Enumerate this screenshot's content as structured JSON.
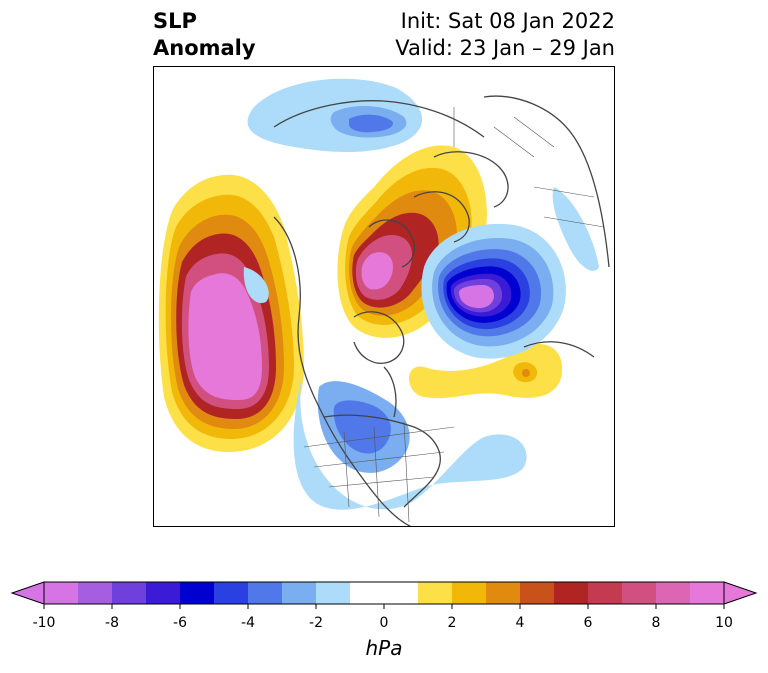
{
  "header": {
    "title_line1": "SLP",
    "title_line2": "Anomaly",
    "init_text": "Init: Sat 08 Jan 2022",
    "valid_text": "Valid: 23 Jan – 29 Jan"
  },
  "colorbar": {
    "unit_label": "hPa",
    "tick_labels": [
      "-10",
      "-8",
      "-6",
      "-4",
      "-2",
      "0",
      "2",
      "4",
      "6",
      "8",
      "10"
    ],
    "colors": [
      "#d674e6",
      "#a55ee0",
      "#7040dc",
      "#3b1bd6",
      "#0000d0",
      "#2a40e0",
      "#5078e8",
      "#7aaef0",
      "#acdcfa",
      "#ffffff",
      "#ffffff",
      "#fde048",
      "#f1b80a",
      "#e08a10",
      "#c8521a",
      "#b02424",
      "#c43a50",
      "#d25080",
      "#dc66b4",
      "#e678da"
    ]
  },
  "map": {
    "projection": "north-polar-stereographic",
    "anomaly_centers": [
      {
        "region": "North Pacific",
        "sign": "positive",
        "peak": "above 10"
      },
      {
        "region": "Greenland / Canadian Arctic",
        "sign": "positive",
        "peak": "above 10"
      },
      {
        "region": "Scandinavia / Barents Sea",
        "sign": "negative",
        "peak": "below -10"
      },
      {
        "region": "Central Atlantic",
        "sign": "positive",
        "peak": "4"
      },
      {
        "region": "Central North America",
        "sign": "negative",
        "peak": "-4"
      },
      {
        "region": "Siberia",
        "sign": "negative",
        "peak": "-4"
      }
    ]
  }
}
